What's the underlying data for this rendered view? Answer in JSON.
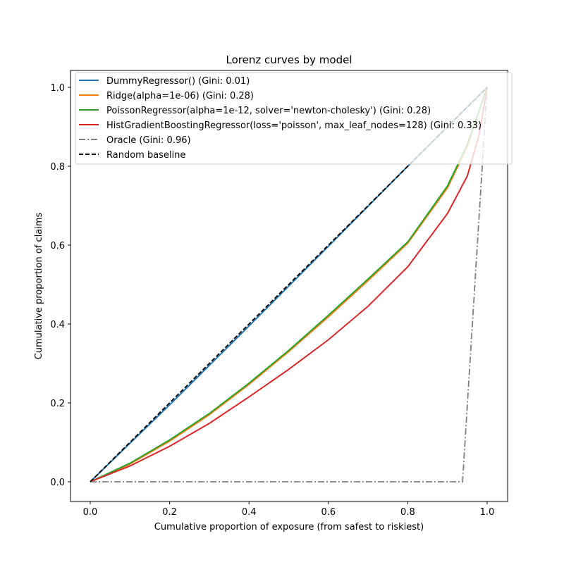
{
  "chart_data": {
    "type": "line",
    "title": "Lorenz curves by model",
    "xlabel": "Cumulative proportion of exposure (from safest to riskiest)",
    "ylabel": "Cumulative proportion of claims",
    "xlim": [
      -0.05,
      1.05
    ],
    "ylim": [
      -0.05,
      1.05
    ],
    "xticks": [
      "0.0",
      "0.2",
      "0.4",
      "0.6",
      "0.8",
      "1.0"
    ],
    "yticks": [
      "0.0",
      "0.2",
      "0.4",
      "0.6",
      "0.8",
      "1.0"
    ],
    "grid": false,
    "legend_position": "top-left",
    "series": [
      {
        "name": "DummyRegressor() (Gini: 0.01)",
        "color": "#1f77b4",
        "style": "solid",
        "x": [
          0,
          0.2,
          0.4,
          0.6,
          0.8,
          1.0
        ],
        "y": [
          0,
          0.195,
          0.395,
          0.597,
          0.8,
          1.0
        ]
      },
      {
        "name": "Ridge(alpha=1e-06) (Gini: 0.28)",
        "color": "#ff7f0e",
        "style": "solid",
        "x": [
          0,
          0.1,
          0.2,
          0.3,
          0.4,
          0.5,
          0.6,
          0.7,
          0.8,
          0.9,
          0.95,
          1.0
        ],
        "y": [
          0,
          0.045,
          0.103,
          0.17,
          0.247,
          0.33,
          0.418,
          0.51,
          0.605,
          0.745,
          0.85,
          1.0
        ]
      },
      {
        "name": "PoissonRegressor(alpha=1e-12, solver='newton-cholesky') (Gini: 0.28)",
        "color": "#2ca02c",
        "style": "solid",
        "x": [
          0,
          0.1,
          0.2,
          0.3,
          0.4,
          0.5,
          0.6,
          0.7,
          0.8,
          0.9,
          0.95,
          1.0
        ],
        "y": [
          0,
          0.047,
          0.106,
          0.173,
          0.25,
          0.333,
          0.422,
          0.514,
          0.608,
          0.75,
          0.855,
          1.0
        ]
      },
      {
        "name": "HistGradientBoostingRegressor(loss='poisson', max_leaf_nodes=128) (Gini: 0.33)",
        "color": "#d62728",
        "style": "solid",
        "x": [
          0,
          0.1,
          0.2,
          0.3,
          0.4,
          0.5,
          0.6,
          0.7,
          0.8,
          0.9,
          0.95,
          0.98,
          1.0
        ],
        "y": [
          0,
          0.04,
          0.09,
          0.148,
          0.215,
          0.285,
          0.36,
          0.445,
          0.545,
          0.68,
          0.775,
          0.88,
          1.0
        ]
      },
      {
        "name": "Oracle (Gini: 0.96)",
        "color": "#7f7f7f",
        "style": "dashdot",
        "x": [
          0,
          0.938,
          1.0
        ],
        "y": [
          0,
          0,
          1.0
        ]
      },
      {
        "name": "Random baseline",
        "color": "#000000",
        "style": "dashed",
        "x": [
          0,
          1
        ],
        "y": [
          0,
          1
        ]
      }
    ]
  }
}
